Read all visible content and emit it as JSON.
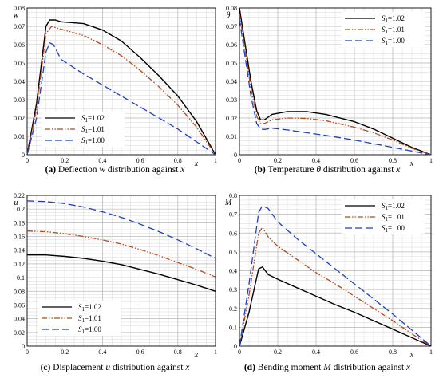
{
  "chart_data": [
    {
      "id": "a",
      "type": "line",
      "caption": {
        "label": "(a)",
        "text": "Deflection",
        "symbol": "w",
        "tail": "distribution against",
        "var": "x"
      },
      "xlabel": "x",
      "ylabel": "w",
      "xlim": [
        0,
        1
      ],
      "ylim": [
        0,
        0.08
      ],
      "xticks": [
        "0",
        "0.2",
        "0.4",
        "0.6",
        "0.8",
        "1"
      ],
      "yticks": [
        "0",
        "0.01",
        "0.02",
        "0.03",
        "0.04",
        "0.05",
        "0.06",
        "0.07",
        "0.08"
      ],
      "grid": true,
      "legend": {
        "position": "bottom-left",
        "entries": [
          {
            "sym": "S",
            "sub": "1",
            "val": "=1.02"
          },
          {
            "sym": "S",
            "sub": "1",
            "val": "=1.01"
          },
          {
            "sym": "S",
            "sub": "1",
            "val": "=1.00"
          }
        ]
      },
      "series": [
        {
          "style": "solid",
          "color": "#000000",
          "points": [
            [
              0,
              0
            ],
            [
              0.05,
              0.028
            ],
            [
              0.1,
              0.07
            ],
            [
              0.12,
              0.0735
            ],
            [
              0.15,
              0.0735
            ],
            [
              0.18,
              0.0725
            ],
            [
              0.3,
              0.0715
            ],
            [
              0.4,
              0.068
            ],
            [
              0.5,
              0.062
            ],
            [
              0.6,
              0.053
            ],
            [
              0.7,
              0.043
            ],
            [
              0.8,
              0.032
            ],
            [
              0.9,
              0.018
            ],
            [
              1,
              0
            ]
          ]
        },
        {
          "style": "dashdotdot",
          "color": "#b34a1a",
          "points": [
            [
              0,
              0
            ],
            [
              0.05,
              0.025
            ],
            [
              0.1,
              0.066
            ],
            [
              0.13,
              0.07
            ],
            [
              0.16,
              0.069
            ],
            [
              0.3,
              0.065
            ],
            [
              0.4,
              0.06
            ],
            [
              0.5,
              0.054
            ],
            [
              0.6,
              0.046
            ],
            [
              0.7,
              0.037
            ],
            [
              0.8,
              0.027
            ],
            [
              0.9,
              0.015
            ],
            [
              1,
              0
            ]
          ]
        },
        {
          "style": "dashed",
          "color": "#1f3fbf",
          "points": [
            [
              0,
              0
            ],
            [
              0.05,
              0.02
            ],
            [
              0.1,
              0.056
            ],
            [
              0.12,
              0.061
            ],
            [
              0.14,
              0.06
            ],
            [
              0.18,
              0.052
            ],
            [
              0.3,
              0.044
            ],
            [
              0.4,
              0.038
            ],
            [
              0.5,
              0.032
            ],
            [
              0.6,
              0.026
            ],
            [
              0.7,
              0.02
            ],
            [
              0.8,
              0.014
            ],
            [
              0.9,
              0.007
            ],
            [
              1,
              0
            ]
          ]
        }
      ]
    },
    {
      "id": "b",
      "type": "line",
      "caption": {
        "label": "(b)",
        "text": "Temperature",
        "symbol": "θ",
        "tail": "distribution against",
        "var": "x"
      },
      "xlabel": "x",
      "ylabel": "θ",
      "xlim": [
        0,
        1
      ],
      "ylim": [
        0,
        0.08
      ],
      "xticks": [
        "0",
        "0.2",
        "0.4",
        "0.6",
        "0.8",
        "1"
      ],
      "yticks": [
        "0",
        "0.01",
        "0.02",
        "0.03",
        "0.04",
        "0.05",
        "0.06",
        "0.07",
        "0.08"
      ],
      "grid": true,
      "legend": {
        "position": "top-right",
        "entries": [
          {
            "sym": "S",
            "sub": "1",
            "val": "=1.02"
          },
          {
            "sym": "S",
            "sub": "1",
            "val": "=1.01"
          },
          {
            "sym": "S",
            "sub": "1",
            "val": "=1.00"
          }
        ]
      },
      "series": [
        {
          "style": "solid",
          "color": "#000000",
          "points": [
            [
              0,
              0.08
            ],
            [
              0.03,
              0.06
            ],
            [
              0.06,
              0.04
            ],
            [
              0.09,
              0.024
            ],
            [
              0.11,
              0.019
            ],
            [
              0.13,
              0.019
            ],
            [
              0.17,
              0.022
            ],
            [
              0.25,
              0.0235
            ],
            [
              0.35,
              0.0235
            ],
            [
              0.45,
              0.022
            ],
            [
              0.6,
              0.018
            ],
            [
              0.7,
              0.014
            ],
            [
              0.8,
              0.009
            ],
            [
              0.9,
              0.004
            ],
            [
              1,
              0
            ]
          ]
        },
        {
          "style": "dashdotdot",
          "color": "#b34a1a",
          "points": [
            [
              0,
              0.077
            ],
            [
              0.03,
              0.057
            ],
            [
              0.06,
              0.036
            ],
            [
              0.09,
              0.021
            ],
            [
              0.11,
              0.017
            ],
            [
              0.13,
              0.017
            ],
            [
              0.17,
              0.019
            ],
            [
              0.25,
              0.02
            ],
            [
              0.35,
              0.0198
            ],
            [
              0.45,
              0.0185
            ],
            [
              0.6,
              0.015
            ],
            [
              0.7,
              0.012
            ],
            [
              0.8,
              0.008
            ],
            [
              0.9,
              0.0035
            ],
            [
              1,
              0
            ]
          ]
        },
        {
          "style": "dashed",
          "color": "#1f3fbf",
          "points": [
            [
              0,
              0.074
            ],
            [
              0.03,
              0.053
            ],
            [
              0.06,
              0.032
            ],
            [
              0.09,
              0.017
            ],
            [
              0.11,
              0.014
            ],
            [
              0.13,
              0.0138
            ],
            [
              0.17,
              0.0145
            ],
            [
              0.25,
              0.0135
            ],
            [
              0.35,
              0.012
            ],
            [
              0.45,
              0.0105
            ],
            [
              0.6,
              0.008
            ],
            [
              0.7,
              0.006
            ],
            [
              0.8,
              0.004
            ],
            [
              0.9,
              0.002
            ],
            [
              1,
              0
            ]
          ]
        }
      ]
    },
    {
      "id": "c",
      "type": "line",
      "caption": {
        "label": "(c)",
        "text": "Displacement",
        "symbol": "u",
        "tail": "distribution against",
        "var": "x"
      },
      "xlabel": "x",
      "ylabel": "u",
      "xlim": [
        0,
        1
      ],
      "ylim": [
        0,
        0.22
      ],
      "xticks": [
        "0",
        "0.2",
        "0.4",
        "0.6",
        "0.8",
        "1"
      ],
      "yticks": [
        "0",
        "0.02",
        "0.04",
        "0.06",
        "0.08",
        "0.1",
        "0.12",
        "0.14",
        "0.16",
        "0.18",
        "0.2",
        "0.22"
      ],
      "grid": true,
      "legend": {
        "position": "bottom-left",
        "entries": [
          {
            "sym": "S",
            "sub": "1",
            "val": "=1.02"
          },
          {
            "sym": "S",
            "sub": "1",
            "val": "=1.01"
          },
          {
            "sym": "S",
            "sub": "1",
            "val": "=1.00"
          }
        ]
      },
      "series": [
        {
          "style": "solid",
          "color": "#000000",
          "points": [
            [
              0,
              0.133
            ],
            [
              0.1,
              0.133
            ],
            [
              0.2,
              0.131
            ],
            [
              0.3,
              0.128
            ],
            [
              0.4,
              0.124
            ],
            [
              0.5,
              0.119
            ],
            [
              0.6,
              0.112
            ],
            [
              0.7,
              0.105
            ],
            [
              0.8,
              0.097
            ],
            [
              0.9,
              0.089
            ],
            [
              1,
              0.08
            ]
          ]
        },
        {
          "style": "dashdotdot",
          "color": "#b34a1a",
          "points": [
            [
              0,
              0.168
            ],
            [
              0.1,
              0.167
            ],
            [
              0.2,
              0.164
            ],
            [
              0.3,
              0.16
            ],
            [
              0.4,
              0.155
            ],
            [
              0.5,
              0.149
            ],
            [
              0.6,
              0.141
            ],
            [
              0.7,
              0.132
            ],
            [
              0.8,
              0.122
            ],
            [
              0.9,
              0.112
            ],
            [
              1,
              0.101
            ]
          ]
        },
        {
          "style": "dashed",
          "color": "#1f3fbf",
          "points": [
            [
              0,
              0.212
            ],
            [
              0.1,
              0.211
            ],
            [
              0.2,
              0.208
            ],
            [
              0.3,
              0.203
            ],
            [
              0.4,
              0.196
            ],
            [
              0.5,
              0.188
            ],
            [
              0.6,
              0.178
            ],
            [
              0.7,
              0.167
            ],
            [
              0.8,
              0.155
            ],
            [
              0.9,
              0.142
            ],
            [
              1,
              0.128
            ]
          ]
        }
      ]
    },
    {
      "id": "d",
      "type": "line",
      "caption": {
        "label": "(d)",
        "text": "Bending moment",
        "symbol": "M",
        "tail": "distribution against",
        "var": "x"
      },
      "xlabel": "x",
      "ylabel": "M",
      "xlim": [
        0,
        1
      ],
      "ylim": [
        0,
        0.8
      ],
      "xticks": [
        "0",
        "0.2",
        "0.4",
        "0.6",
        "0.8",
        "1"
      ],
      "yticks": [
        "0",
        "0.1",
        "0.2",
        "0.3",
        "0.4",
        "0.5",
        "0.6",
        "0.7",
        "0.8"
      ],
      "grid": true,
      "legend": {
        "position": "top-right",
        "entries": [
          {
            "sym": "S",
            "sub": "1",
            "val": "=1.02"
          },
          {
            "sym": "S",
            "sub": "1",
            "val": "=1.01"
          },
          {
            "sym": "S",
            "sub": "1",
            "val": "=1.00"
          }
        ]
      },
      "series": [
        {
          "style": "solid",
          "color": "#000000",
          "points": [
            [
              0,
              0
            ],
            [
              0.05,
              0.18
            ],
            [
              0.1,
              0.41
            ],
            [
              0.12,
              0.42
            ],
            [
              0.15,
              0.38
            ],
            [
              0.17,
              0.37
            ],
            [
              0.2,
              0.355
            ],
            [
              0.3,
              0.31
            ],
            [
              0.4,
              0.265
            ],
            [
              0.5,
              0.22
            ],
            [
              0.6,
              0.18
            ],
            [
              0.7,
              0.135
            ],
            [
              0.8,
              0.09
            ],
            [
              0.9,
              0.045
            ],
            [
              1,
              0
            ]
          ]
        },
        {
          "style": "dashdotdot",
          "color": "#b34a1a",
          "points": [
            [
              0,
              0
            ],
            [
              0.05,
              0.27
            ],
            [
              0.1,
              0.6
            ],
            [
              0.12,
              0.63
            ],
            [
              0.15,
              0.58
            ],
            [
              0.2,
              0.53
            ],
            [
              0.3,
              0.46
            ],
            [
              0.4,
              0.39
            ],
            [
              0.5,
              0.33
            ],
            [
              0.6,
              0.265
            ],
            [
              0.7,
              0.2
            ],
            [
              0.8,
              0.135
            ],
            [
              0.9,
              0.065
            ],
            [
              1,
              0
            ]
          ]
        },
        {
          "style": "dashed",
          "color": "#1f3fbf",
          "points": [
            [
              0,
              0
            ],
            [
              0.05,
              0.33
            ],
            [
              0.1,
              0.71
            ],
            [
              0.12,
              0.745
            ],
            [
              0.15,
              0.73
            ],
            [
              0.2,
              0.66
            ],
            [
              0.3,
              0.57
            ],
            [
              0.4,
              0.49
            ],
            [
              0.5,
              0.41
            ],
            [
              0.6,
              0.33
            ],
            [
              0.7,
              0.25
            ],
            [
              0.8,
              0.17
            ],
            [
              0.9,
              0.085
            ],
            [
              1,
              0
            ]
          ]
        }
      ]
    }
  ]
}
